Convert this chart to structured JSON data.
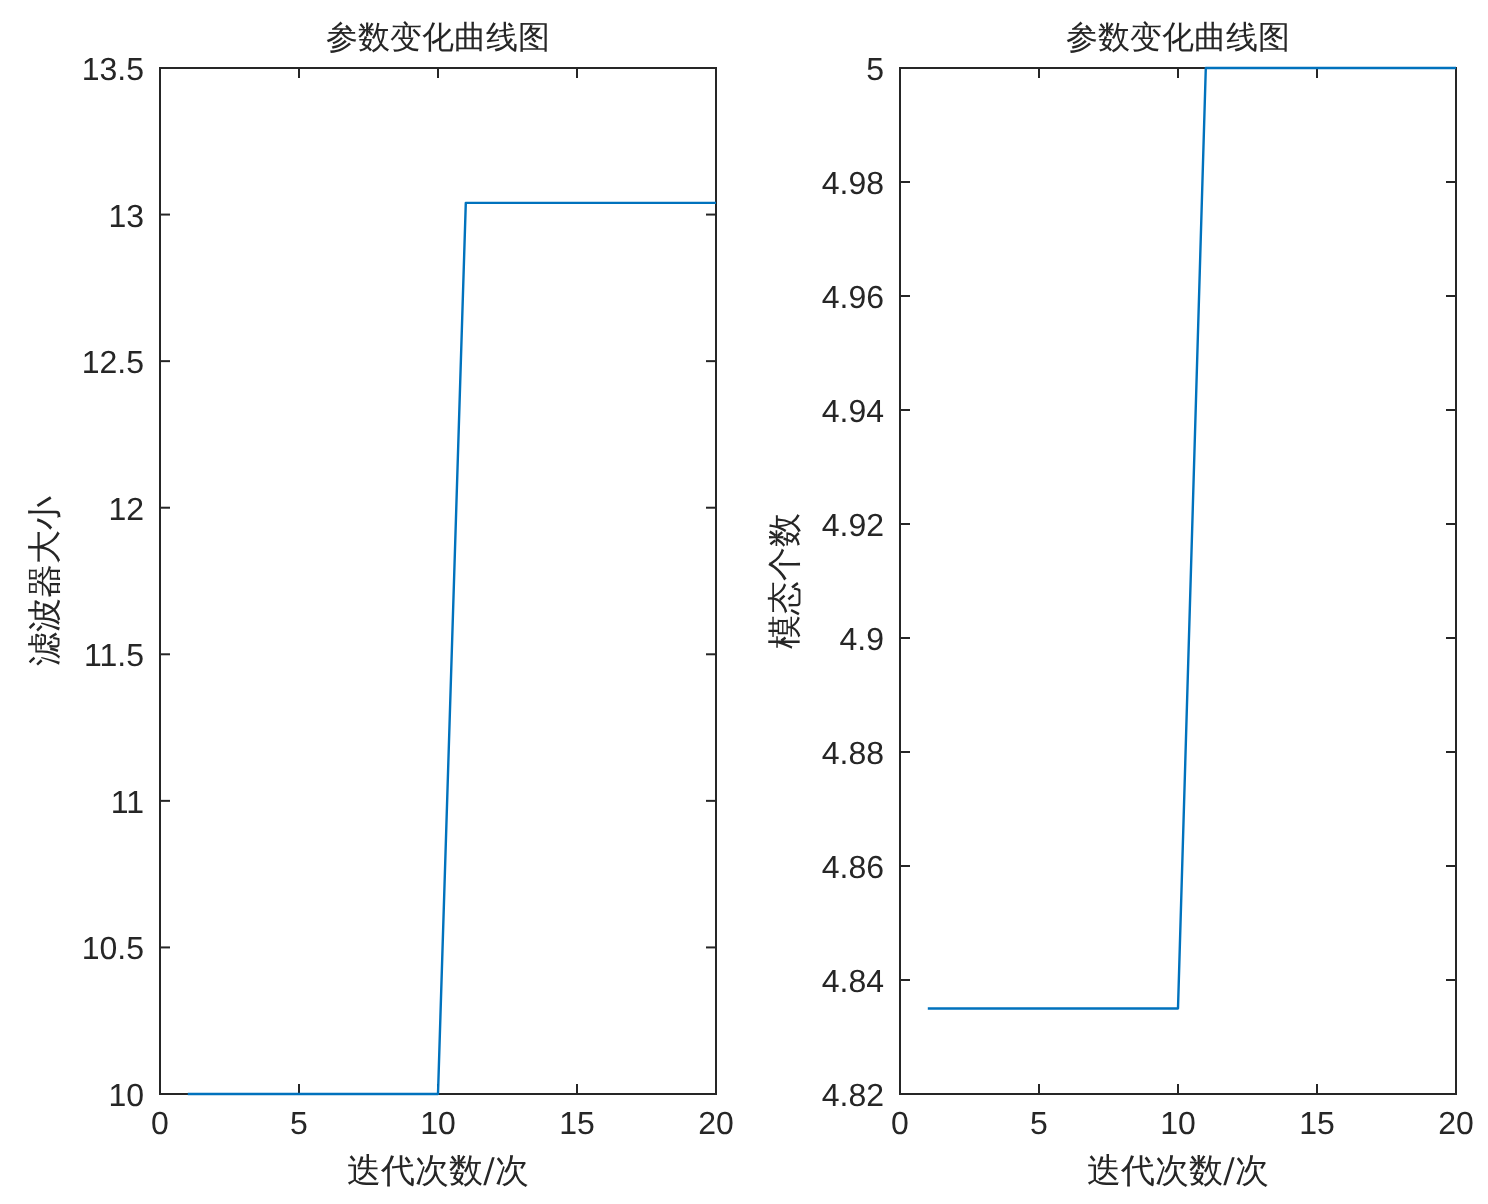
{
  "chart_data": [
    {
      "type": "line",
      "title": "参数变化曲线图",
      "xlabel": "迭代次数/次",
      "ylabel": "滤波器大小",
      "x": [
        1,
        2,
        3,
        4,
        5,
        6,
        7,
        8,
        9,
        10,
        11,
        12,
        13,
        14,
        15,
        16,
        17,
        18,
        19,
        20
      ],
      "series": [
        {
          "color": "#0072bd",
          "values": [
            10,
            10,
            10,
            10,
            10,
            10,
            10,
            10,
            10,
            10,
            13.04,
            13.04,
            13.04,
            13.04,
            13.04,
            13.04,
            13.04,
            13.04,
            13.04,
            13.04
          ]
        }
      ],
      "xlim": [
        0,
        20
      ],
      "xticks": [
        0,
        5,
        10,
        15,
        20
      ],
      "ylim": [
        10,
        13.5
      ],
      "yticks": [
        10,
        10.5,
        11,
        11.5,
        12,
        12.5,
        13,
        13.5
      ]
    },
    {
      "type": "line",
      "title": "参数变化曲线图",
      "xlabel": "迭代次数/次",
      "ylabel": "模态个数",
      "x": [
        1,
        2,
        3,
        4,
        5,
        6,
        7,
        8,
        9,
        10,
        11,
        12,
        13,
        14,
        15,
        16,
        17,
        18,
        19,
        20
      ],
      "series": [
        {
          "color": "#0072bd",
          "values": [
            4.835,
            4.835,
            4.835,
            4.835,
            4.835,
            4.835,
            4.835,
            4.835,
            4.835,
            4.835,
            5,
            5,
            5,
            5,
            5,
            5,
            5,
            5,
            5,
            5
          ]
        }
      ],
      "xlim": [
        0,
        20
      ],
      "xticks": [
        0,
        5,
        10,
        15,
        20
      ],
      "ylim": [
        4.82,
        5
      ],
      "yticks": [
        4.82,
        4.84,
        4.86,
        4.88,
        4.9,
        4.92,
        4.94,
        4.96,
        4.98,
        5
      ]
    }
  ]
}
